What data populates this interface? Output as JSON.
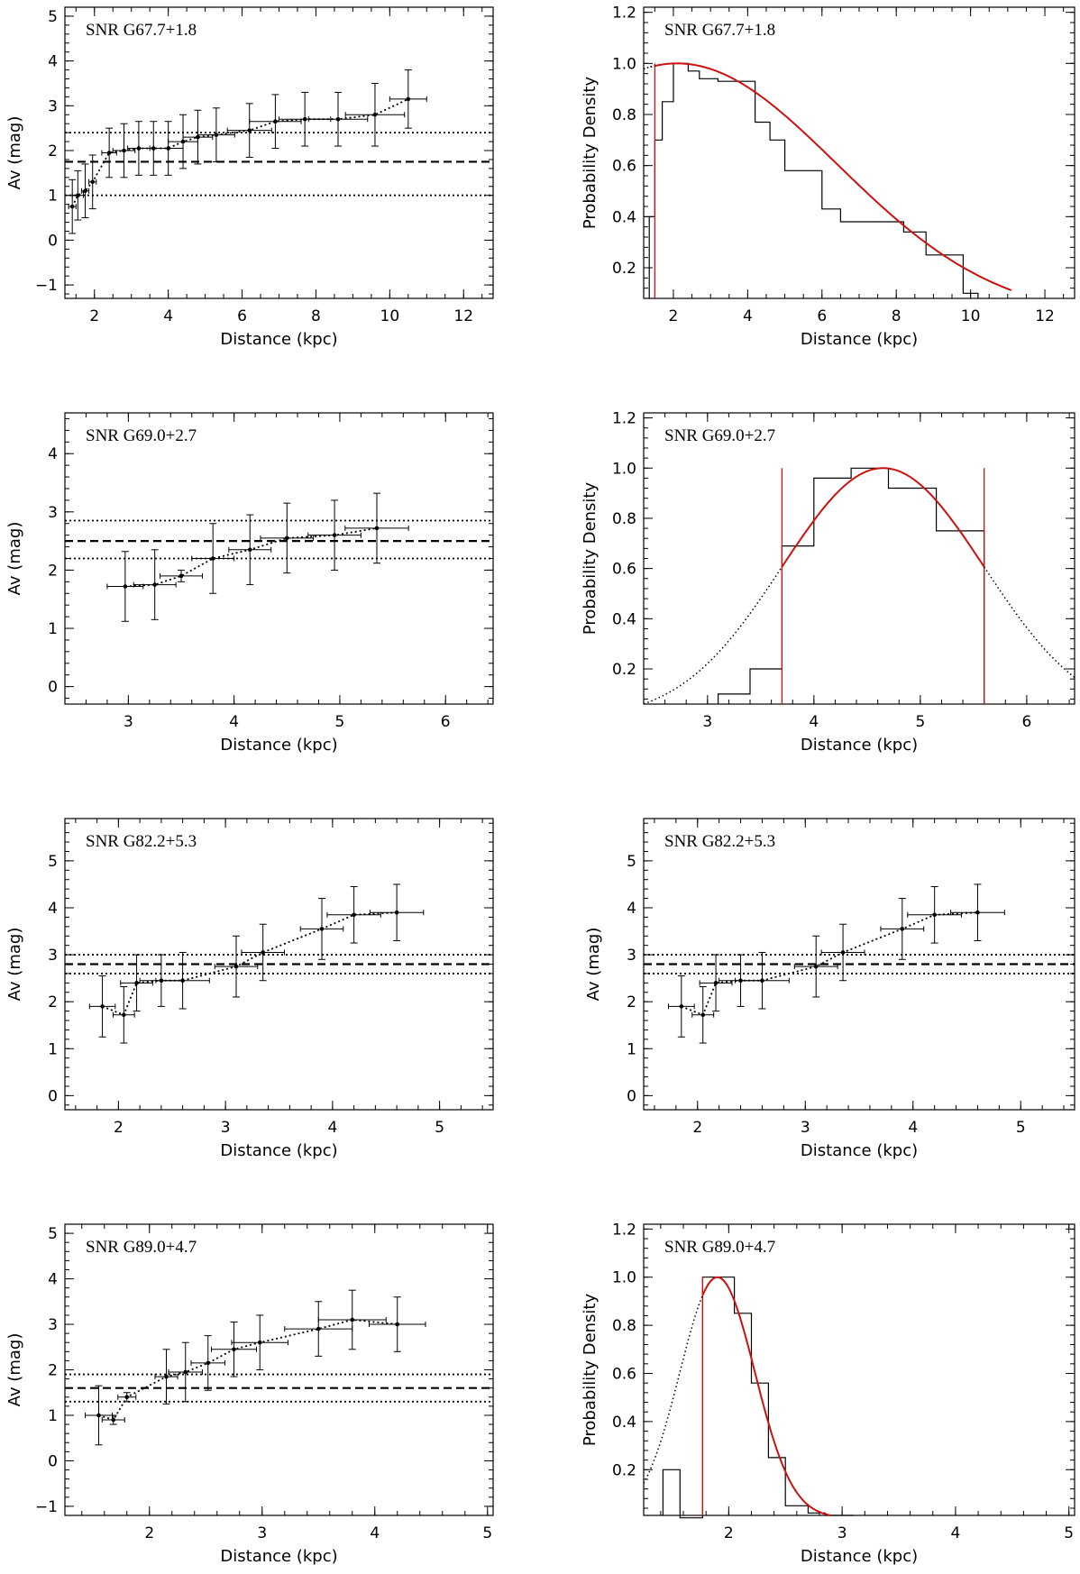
{
  "chart_data": [
    {
      "type": "scatter",
      "title": "SNR G67.7+1.8",
      "xlabel": "Distance (kpc)",
      "ylabel": "Av (mag)",
      "xlim": [
        1.2,
        12.8
      ],
      "ylim": [
        -1.3,
        5.2
      ],
      "xticks": [
        2,
        4,
        6,
        8,
        10,
        12
      ],
      "yticks": [
        -1,
        0,
        1,
        2,
        3,
        4,
        5
      ],
      "grid": false,
      "hlines": [
        {
          "y": 2.4,
          "style": "dotted"
        },
        {
          "y": 1.75,
          "style": "dashed"
        },
        {
          "y": 1.0,
          "style": "dotted"
        }
      ],
      "points": [
        {
          "x": 1.4,
          "y": 0.75,
          "xerr": 0.1,
          "yerr": 0.6
        },
        {
          "x": 1.55,
          "y": 1.0,
          "xerr": 0.15,
          "yerr": 0.55
        },
        {
          "x": 1.75,
          "y": 1.1,
          "xerr": 0.1,
          "yerr": 0.6
        },
        {
          "x": 1.95,
          "y": 1.3,
          "xerr": 0.1,
          "yerr": 0.6
        },
        {
          "x": 2.4,
          "y": 1.95,
          "xerr": 0.2,
          "yerr": 0.55
        },
        {
          "x": 2.8,
          "y": 2.0,
          "xerr": 0.3,
          "yerr": 0.6
        },
        {
          "x": 3.2,
          "y": 2.05,
          "xerr": 0.3,
          "yerr": 0.6
        },
        {
          "x": 3.6,
          "y": 2.05,
          "xerr": 0.4,
          "yerr": 0.6
        },
        {
          "x": 4.0,
          "y": 2.05,
          "xerr": 0.4,
          "yerr": 0.6
        },
        {
          "x": 4.4,
          "y": 2.2,
          "xerr": 0.4,
          "yerr": 0.6
        },
        {
          "x": 4.8,
          "y": 2.3,
          "xerr": 0.4,
          "yerr": 0.6
        },
        {
          "x": 5.3,
          "y": 2.35,
          "xerr": 0.5,
          "yerr": 0.6
        },
        {
          "x": 6.2,
          "y": 2.45,
          "xerr": 0.6,
          "yerr": 0.6
        },
        {
          "x": 6.9,
          "y": 2.65,
          "xerr": 0.7,
          "yerr": 0.6
        },
        {
          "x": 7.7,
          "y": 2.7,
          "xerr": 0.7,
          "yerr": 0.6
        },
        {
          "x": 8.6,
          "y": 2.7,
          "xerr": 0.8,
          "yerr": 0.6
        },
        {
          "x": 9.6,
          "y": 2.8,
          "xerr": 0.8,
          "yerr": 0.7
        },
        {
          "x": 10.5,
          "y": 3.15,
          "xerr": 0.5,
          "yerr": 0.65
        }
      ]
    },
    {
      "type": "line",
      "title": "SNR G67.7+1.8",
      "xlabel": "Distance (kpc)",
      "ylabel": "Probability Density",
      "xlim": [
        1.2,
        12.8
      ],
      "ylim": [
        0.08,
        1.22
      ],
      "xticks": [
        2,
        4,
        6,
        8,
        10,
        12
      ],
      "yticks": [
        0.2,
        0.4,
        0.6,
        0.8,
        1.0,
        1.2
      ],
      "grid": false,
      "histogram": {
        "edges": [
          1.35,
          1.5,
          1.7,
          2.0,
          2.4,
          2.7,
          3.2,
          4.2,
          4.6,
          5.0,
          6.0,
          6.5,
          7.2,
          8.2,
          8.8,
          9.8,
          10.2
        ],
        "heights": [
          0.4,
          0.7,
          0.85,
          1.0,
          0.97,
          0.94,
          0.93,
          0.77,
          0.7,
          0.58,
          0.43,
          0.38,
          0.38,
          0.34,
          0.25,
          0.1
        ],
        "cutoff_x": 1.5
      },
      "fit": {
        "kind": "gaussian",
        "mean": 2.1,
        "sigma": 4.3,
        "peak": 1.0,
        "range": [
          1.2,
          11.1
        ],
        "fit_start": 1.5
      }
    },
    {
      "type": "scatter",
      "title": "SNR G69.0+2.7",
      "xlabel": "Distance (kpc)",
      "ylabel": "Av (mag)",
      "xlim": [
        2.4,
        6.45
      ],
      "ylim": [
        -0.3,
        4.7
      ],
      "xticks": [
        3,
        4,
        5,
        6
      ],
      "yticks": [
        0,
        1,
        2,
        3,
        4
      ],
      "grid": false,
      "hlines": [
        {
          "y": 2.85,
          "style": "dotted"
        },
        {
          "y": 2.5,
          "style": "dashed"
        },
        {
          "y": 2.2,
          "style": "dotted"
        }
      ],
      "points": [
        {
          "x": 2.97,
          "y": 1.72,
          "xerr": 0.17,
          "yerr": 0.6
        },
        {
          "x": 3.25,
          "y": 1.75,
          "xerr": 0.2,
          "yerr": 0.6
        },
        {
          "x": 3.5,
          "y": 1.9,
          "xerr": 0.2,
          "yerr": 0.1
        },
        {
          "x": 3.8,
          "y": 2.2,
          "xerr": 0.2,
          "yerr": 0.6
        },
        {
          "x": 4.15,
          "y": 2.35,
          "xerr": 0.2,
          "yerr": 0.6
        },
        {
          "x": 4.5,
          "y": 2.55,
          "xerr": 0.25,
          "yerr": 0.6
        },
        {
          "x": 4.95,
          "y": 2.6,
          "xerr": 0.25,
          "yerr": 0.6
        },
        {
          "x": 5.35,
          "y": 2.72,
          "xerr": 0.3,
          "yerr": 0.6
        }
      ]
    },
    {
      "type": "line",
      "title": "SNR G69.0+2.7",
      "xlabel": "Distance (kpc)",
      "ylabel": "Probability Density",
      "xlim": [
        2.4,
        6.45
      ],
      "ylim": [
        0.06,
        1.22
      ],
      "xticks": [
        3,
        4,
        5,
        6
      ],
      "yticks": [
        0.2,
        0.4,
        0.6,
        0.8,
        1.0,
        1.2
      ],
      "grid": false,
      "histogram": {
        "edges": [
          3.1,
          3.4,
          3.7,
          4.0,
          4.35,
          4.7,
          5.15,
          5.6
        ],
        "heights": [
          0.1,
          0.2,
          0.69,
          0.96,
          1.0,
          0.92,
          0.75
        ],
        "cutoff_x": [
          3.7,
          5.6
        ]
      },
      "fit": {
        "kind": "gaussian",
        "mean": 4.65,
        "sigma": 0.95,
        "peak": 1.0,
        "range": [
          2.4,
          6.45
        ],
        "fit_range": [
          3.7,
          5.6
        ]
      }
    },
    {
      "type": "scatter",
      "title": "SNR G82.2+5.3",
      "xlabel": "Distance (kpc)",
      "ylabel": "Av (mag)",
      "xlim": [
        1.5,
        5.5
      ],
      "ylim": [
        -0.3,
        5.9
      ],
      "xticks": [
        2,
        3,
        4,
        5
      ],
      "yticks": [
        0,
        1,
        2,
        3,
        4,
        5
      ],
      "grid": false,
      "hlines": [
        {
          "y": 3.0,
          "style": "dotted"
        },
        {
          "y": 2.8,
          "style": "dashed"
        },
        {
          "y": 2.6,
          "style": "dotted"
        }
      ],
      "points": [
        {
          "x": 1.85,
          "y": 1.9,
          "xerr": 0.12,
          "yerr": 0.65
        },
        {
          "x": 2.05,
          "y": 1.72,
          "xerr": 0.1,
          "yerr": 0.6
        },
        {
          "x": 2.17,
          "y": 2.4,
          "xerr": 0.15,
          "yerr": 0.6
        },
        {
          "x": 2.4,
          "y": 2.45,
          "xerr": 0.2,
          "yerr": 0.55
        },
        {
          "x": 2.6,
          "y": 2.45,
          "xerr": 0.25,
          "yerr": 0.6
        },
        {
          "x": 3.1,
          "y": 2.75,
          "xerr": 0.2,
          "yerr": 0.65
        },
        {
          "x": 3.35,
          "y": 3.05,
          "xerr": 0.2,
          "yerr": 0.6
        },
        {
          "x": 3.9,
          "y": 3.55,
          "xerr": 0.2,
          "yerr": 0.65
        },
        {
          "x": 4.2,
          "y": 3.85,
          "xerr": 0.25,
          "yerr": 0.6
        },
        {
          "x": 4.6,
          "y": 3.9,
          "xerr": 0.25,
          "yerr": 0.6
        }
      ]
    },
    {
      "type": "scatter",
      "title": "SNR G82.2+5.3",
      "xlabel": "Distance (kpc)",
      "ylabel": "Av (mag)",
      "xlim": [
        1.5,
        5.5
      ],
      "ylim": [
        -0.3,
        5.9
      ],
      "xticks": [
        2,
        3,
        4,
        5
      ],
      "yticks": [
        0,
        1,
        2,
        3,
        4,
        5
      ],
      "grid": false,
      "hlines": [
        {
          "y": 3.0,
          "style": "dotted"
        },
        {
          "y": 2.8,
          "style": "dashed"
        },
        {
          "y": 2.6,
          "style": "dotted"
        }
      ],
      "points": [
        {
          "x": 1.85,
          "y": 1.9,
          "xerr": 0.12,
          "yerr": 0.65
        },
        {
          "x": 2.05,
          "y": 1.72,
          "xerr": 0.1,
          "yerr": 0.6
        },
        {
          "x": 2.17,
          "y": 2.4,
          "xerr": 0.15,
          "yerr": 0.6
        },
        {
          "x": 2.4,
          "y": 2.45,
          "xerr": 0.2,
          "yerr": 0.55
        },
        {
          "x": 2.6,
          "y": 2.45,
          "xerr": 0.25,
          "yerr": 0.6
        },
        {
          "x": 3.1,
          "y": 2.75,
          "xerr": 0.2,
          "yerr": 0.65
        },
        {
          "x": 3.35,
          "y": 3.05,
          "xerr": 0.2,
          "yerr": 0.6
        },
        {
          "x": 3.9,
          "y": 3.55,
          "xerr": 0.2,
          "yerr": 0.65
        },
        {
          "x": 4.2,
          "y": 3.85,
          "xerr": 0.25,
          "yerr": 0.6
        },
        {
          "x": 4.6,
          "y": 3.9,
          "xerr": 0.25,
          "yerr": 0.6
        }
      ]
    },
    {
      "type": "scatter",
      "title": "SNR G89.0+4.7",
      "xlabel": "Distance (kpc)",
      "ylabel": "Av (mag)",
      "xlim": [
        1.25,
        5.05
      ],
      "ylim": [
        -1.2,
        5.2
      ],
      "xticks": [
        2,
        3,
        4,
        5
      ],
      "yticks": [
        -1,
        0,
        1,
        2,
        3,
        4,
        5
      ],
      "grid": false,
      "hlines": [
        {
          "y": 1.9,
          "style": "dotted"
        },
        {
          "y": 1.6,
          "style": "dashed"
        },
        {
          "y": 1.3,
          "style": "dotted"
        }
      ],
      "points": [
        {
          "x": 1.55,
          "y": 1.0,
          "xerr": 0.12,
          "yerr": 0.65
        },
        {
          "x": 1.68,
          "y": 0.9,
          "xerr": 0.1,
          "yerr": 0.1
        },
        {
          "x": 1.8,
          "y": 1.4,
          "xerr": 0.08,
          "yerr": 0.1
        },
        {
          "x": 2.15,
          "y": 1.85,
          "xerr": 0.1,
          "yerr": 0.6
        },
        {
          "x": 2.32,
          "y": 1.95,
          "xerr": 0.15,
          "yerr": 0.65
        },
        {
          "x": 2.52,
          "y": 2.15,
          "xerr": 0.15,
          "yerr": 0.6
        },
        {
          "x": 2.75,
          "y": 2.45,
          "xerr": 0.2,
          "yerr": 0.6
        },
        {
          "x": 2.98,
          "y": 2.6,
          "xerr": 0.25,
          "yerr": 0.6
        },
        {
          "x": 3.5,
          "y": 2.9,
          "xerr": 0.3,
          "yerr": 0.6
        },
        {
          "x": 3.8,
          "y": 3.1,
          "xerr": 0.3,
          "yerr": 0.65
        },
        {
          "x": 4.2,
          "y": 3.0,
          "xerr": 0.25,
          "yerr": 0.6
        }
      ]
    },
    {
      "type": "line",
      "title": "SNR G89.0+4.7",
      "xlabel": "Distance (kpc)",
      "ylabel": "Probability Density",
      "xlim": [
        1.25,
        5.05
      ],
      "ylim": [
        0.01,
        1.22
      ],
      "xticks": [
        2,
        3,
        4,
        5
      ],
      "yticks": [
        0.2,
        0.4,
        0.6,
        0.8,
        1.0,
        1.2
      ],
      "grid": false,
      "histogram": {
        "edges": [
          1.42,
          1.57,
          1.77,
          1.9,
          2.05,
          2.2,
          2.35,
          2.5,
          2.7,
          2.85,
          3.1
        ],
        "heights": [
          0.2,
          0.0,
          1.0,
          1.0,
          0.85,
          0.56,
          0.25,
          0.05,
          0.02,
          0.01
        ],
        "cutoff_x": 1.77
      },
      "fit": {
        "kind": "gaussian",
        "mean": 1.9,
        "sigma": 0.33,
        "peak": 1.0,
        "range": [
          1.25,
          5.05
        ],
        "fit_start": 1.77
      }
    }
  ]
}
